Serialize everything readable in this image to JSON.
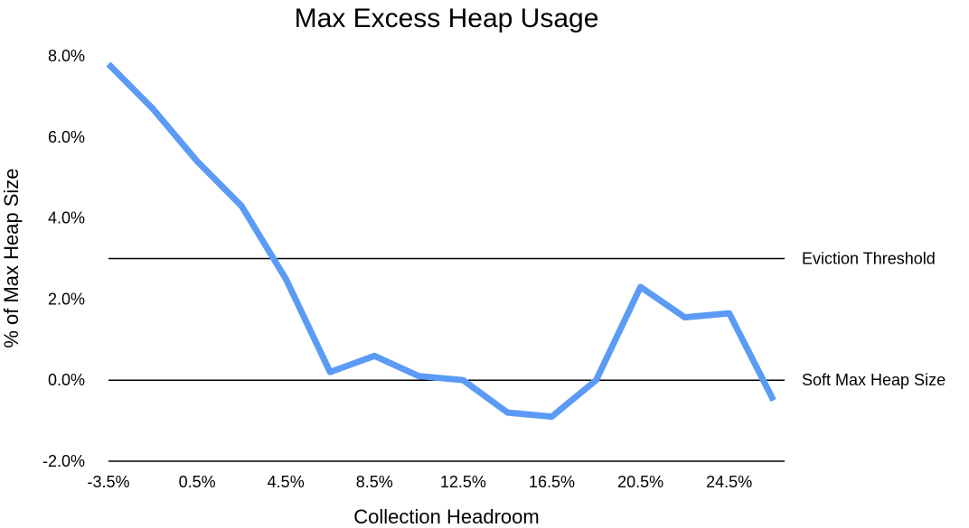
{
  "chart_data": {
    "type": "line",
    "title": "Max Excess Heap Usage",
    "xlabel": "Collection Headroom",
    "ylabel": "% of Max Heap Size",
    "x_tick_labels": [
      "-3.5%",
      "0.5%",
      "4.5%",
      "8.5%",
      "12.5%",
      "16.5%",
      "20.5%",
      "24.5%"
    ],
    "y_tick_labels": [
      "8.0%",
      "6.0%",
      "4.0%",
      "2.0%",
      "0.0%",
      "-2.0%"
    ],
    "x_unit": "%",
    "y_unit": "%",
    "xlim": [
      -3.5,
      27.0
    ],
    "ylim": [
      -2.0,
      8.0
    ],
    "y_ticks": [
      8.0,
      6.0,
      4.0,
      2.0,
      0.0,
      -2.0
    ],
    "grid": false,
    "series": [
      {
        "name": "",
        "color": "#5B9BF5",
        "x": [
          -3.5,
          -1.5,
          0.5,
          2.5,
          4.5,
          6.5,
          8.5,
          10.5,
          12.5,
          14.5,
          16.5,
          18.5,
          20.5,
          22.5,
          24.5,
          26.5
        ],
        "y": [
          7.8,
          6.7,
          5.4,
          4.3,
          2.5,
          0.2,
          0.6,
          0.1,
          0.0,
          -0.8,
          -0.9,
          0.0,
          2.3,
          1.55,
          1.65,
          -0.5
        ]
      }
    ],
    "reference_lines": [
      {
        "label": "Eviction Threshold",
        "y": 3.0,
        "color": "#000000"
      },
      {
        "label": "Soft Max Heap Size",
        "y": 0.0,
        "color": "#000000"
      }
    ]
  }
}
